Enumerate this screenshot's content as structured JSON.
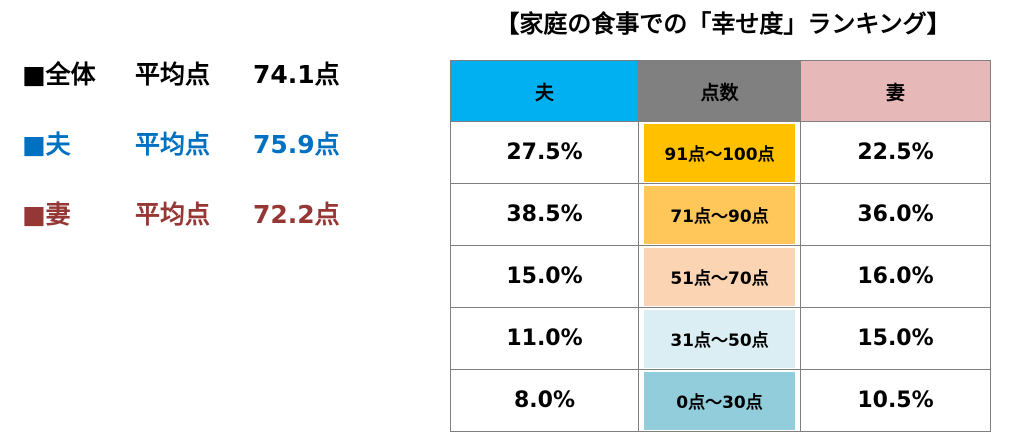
{
  "averages": [
    {
      "label": "■全体",
      "mid": "平均点",
      "value": "74.1点",
      "color": "#000000"
    },
    {
      "label": "■夫",
      "mid": "平均点",
      "value": "75.9点",
      "color": "#0070c0"
    },
    {
      "label": "■妻",
      "mid": "平均点",
      "value": "72.2点",
      "color": "#953735"
    }
  ],
  "chart_data": {
    "type": "table",
    "title": "【家庭の食事での「幸せ度」ランキング】",
    "columns": [
      "夫",
      "点数",
      "妻"
    ],
    "header_colors": [
      "#00b0f0",
      "#808080",
      "#e6b8b7"
    ],
    "rows": [
      {
        "husband": "27.5%",
        "score": "91点～100点",
        "wife": "22.5%",
        "score_color": "#ffc000"
      },
      {
        "husband": "38.5%",
        "score": "71点～90点",
        "wife": "36.0%",
        "score_color": "#ffc65a"
      },
      {
        "husband": "15.0%",
        "score": "51点～70点",
        "wife": "16.0%",
        "score_color": "#fbd4b4"
      },
      {
        "husband": "11.0%",
        "score": "31点～50点",
        "wife": "15.0%",
        "score_color": "#daeef3"
      },
      {
        "husband": "8.0%",
        "score": "0点～30点",
        "wife": "10.5%",
        "score_color": "#92cddc"
      }
    ]
  }
}
